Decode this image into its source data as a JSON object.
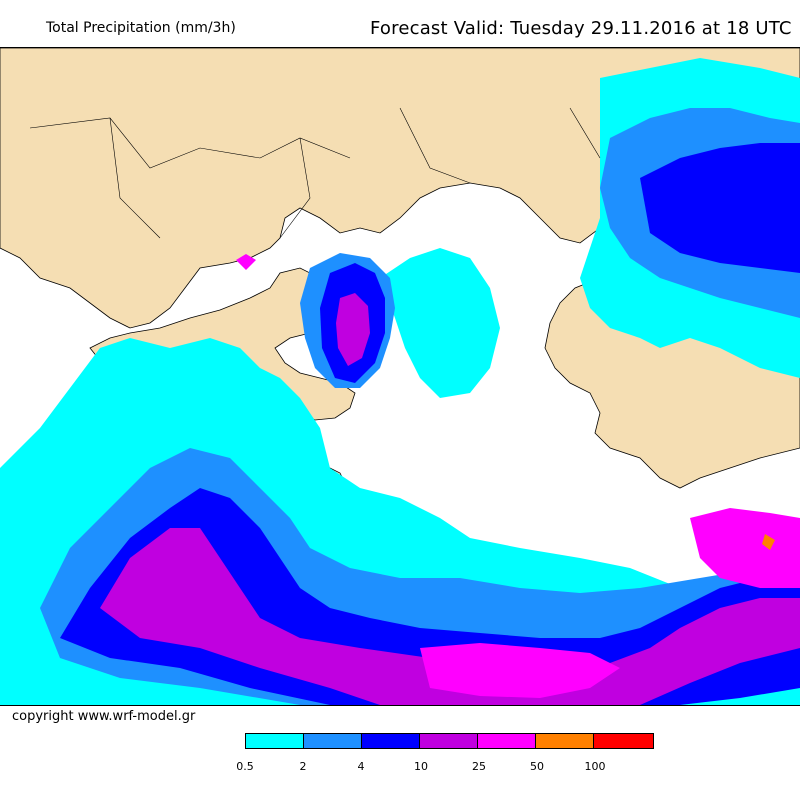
{
  "header": {
    "title_left": "Total Precipitation (mm/3h)",
    "title_right": "Forecast Valid:  Tuesday 29.11.2016 at 18 UTC"
  },
  "footer": {
    "copyright": "copyright www.wrf-model.gr"
  },
  "legend": {
    "colors": [
      "#00ffff",
      "#1e90ff",
      "#0000ff",
      "#c000e0",
      "#ff00ff",
      "#ff8000",
      "#ff0000"
    ],
    "ticks": [
      "0.5",
      "2",
      "4",
      "10",
      "25",
      "50",
      "100"
    ]
  },
  "map": {
    "region": "Greece and the Aegean",
    "colors": {
      "land": "#f5deb3",
      "sea_no_rain": "#ffffff",
      "level1": "#00ffff",
      "level2": "#1e90ff",
      "level3": "#0000ff",
      "level4": "#c000e0",
      "level5": "#ff00ff",
      "level6": "#ff8000"
    }
  }
}
